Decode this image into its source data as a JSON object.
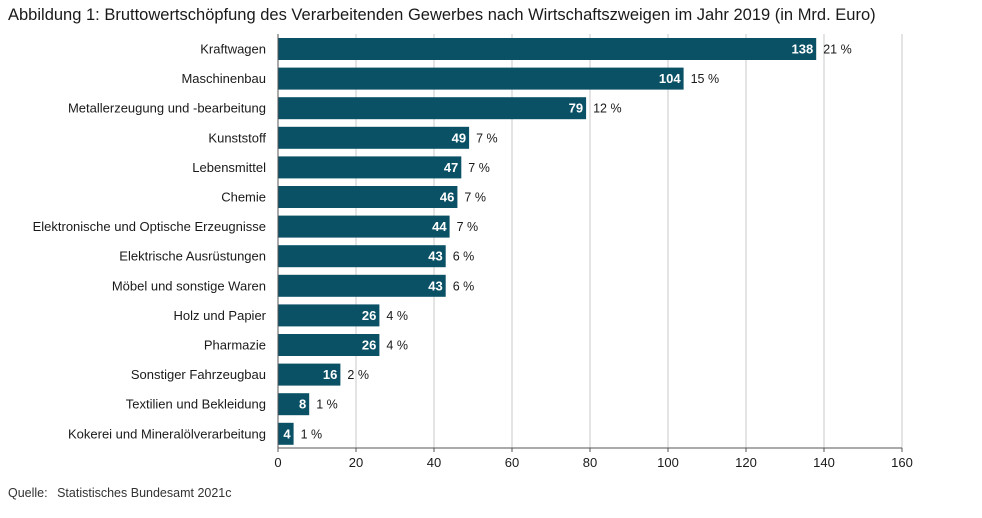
{
  "chart_data": {
    "type": "bar",
    "orientation": "horizontal",
    "title": "Abbildung 1: Bruttowertschöpfung des Verarbeitenden Gewerbes nach Wirtschaftszweigen im Jahr 2019 (in Mrd. Euro)",
    "categories": [
      "Kraftwagen",
      "Maschinenbau",
      "Metallerzeugung und -bearbeitung",
      "Kunststoff",
      "Lebensmittel",
      "Chemie",
      "Elektronische und Optische Erzeugnisse",
      "Elektrische Ausrüstungen",
      "Möbel und sonstige Waren",
      "Holz und Papier",
      "Pharmazie",
      "Sonstiger Fahrzeugbau",
      "Textilien und Bekleidung",
      "Kokerei und Mineralölverarbeitung"
    ],
    "values": [
      138,
      104,
      79,
      49,
      47,
      46,
      44,
      43,
      43,
      26,
      26,
      16,
      8,
      4
    ],
    "value_labels": [
      "138",
      "104",
      "79",
      "49",
      "47",
      "46",
      "44",
      "43",
      "43",
      "26",
      "26",
      "16",
      "8",
      "4"
    ],
    "percent_labels": [
      "21 %",
      "15 %",
      "12 %",
      "7 %",
      "7 %",
      "7 %",
      "7 %",
      "6 %",
      "6 %",
      "4 %",
      "4 %",
      "2 %",
      "1 %",
      "1 %"
    ],
    "xlim": [
      0,
      160
    ],
    "x_ticks": [
      "0",
      "20",
      "40",
      "60",
      "80",
      "100",
      "120",
      "140",
      "160"
    ],
    "grid": true,
    "bar_color": "#0b5166",
    "grid_color": "#c8c8c8",
    "axis_color": "#555555"
  },
  "source": {
    "label": "Quelle:",
    "text": "Statistisches Bundesamt 2021c"
  }
}
